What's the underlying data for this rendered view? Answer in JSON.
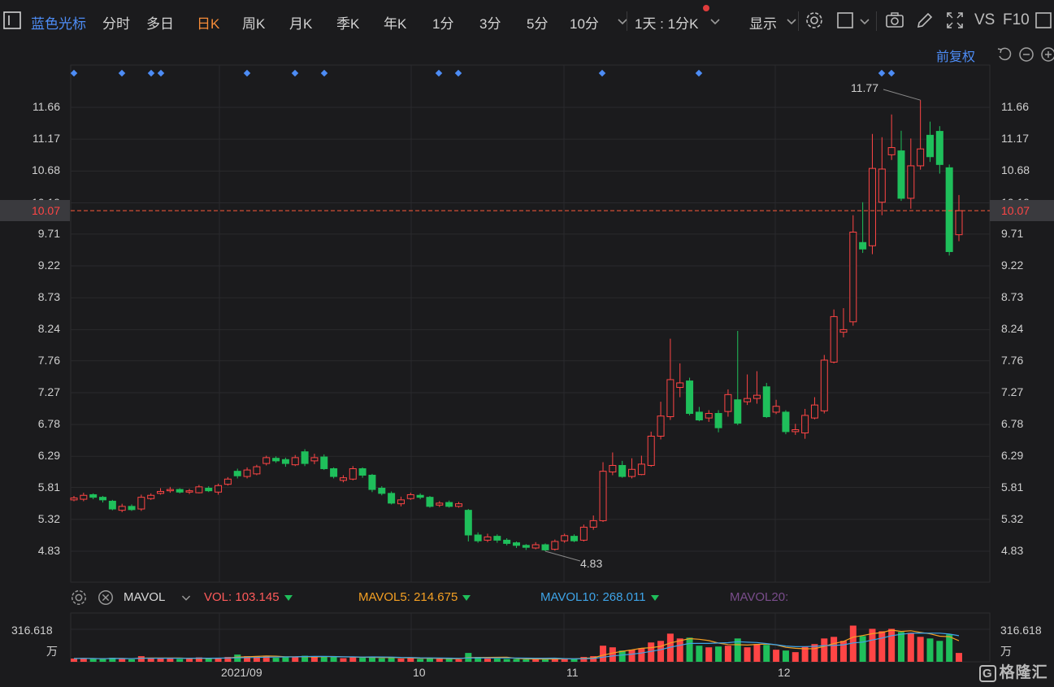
{
  "toolbar": {
    "stock_name": "蓝色光标",
    "tabs": [
      "分时",
      "多日",
      "日K",
      "周K",
      "月K",
      "季K",
      "年K",
      "1分",
      "3分",
      "5分",
      "10分"
    ],
    "active_tab": "日K",
    "period_select": "1天 : 1分K",
    "display_label": "显示",
    "vs_label": "VS",
    "f10_label": "F10"
  },
  "chart_header": {
    "adjust_label": "前复权"
  },
  "price_axis": {
    "ticks": [
      "11.66",
      "11.17",
      "10.68",
      "10.19",
      "9.71",
      "9.22",
      "8.73",
      "8.24",
      "7.76",
      "7.27",
      "6.78",
      "6.29",
      "5.81",
      "5.32",
      "4.83"
    ],
    "current_price": "10.07",
    "high_label": "11.77",
    "low_label": "4.83"
  },
  "volume_panel": {
    "indicator": "MAVOL",
    "vol_label": "VOL:",
    "vol_value": "103.145",
    "mavol5_label": "MAVOL5:",
    "mavol5_value": "214.675",
    "mavol10_label": "MAVOL10:",
    "mavol10_value": "268.011",
    "mavol20_label": "MAVOL20:",
    "axis_max": "316.618",
    "unit": "万"
  },
  "time_axis": {
    "labels": [
      "2021/09",
      "10",
      "11",
      "12"
    ]
  },
  "watermark": "格隆汇",
  "colors": {
    "up": "#ff4545",
    "down": "#1fbf5b",
    "ma5": "#f5a023",
    "ma10": "#3ea4e8",
    "brand": "#4d8cf5",
    "accent": "#f58b38"
  },
  "chart_data": {
    "type": "candlestick",
    "title": "蓝色光标 日K",
    "ylim": [
      4.55,
      12.0
    ],
    "series": [
      {
        "o": 5.62,
        "c": 5.65,
        "h": 5.68,
        "l": 5.6,
        "v": 8
      },
      {
        "o": 5.63,
        "c": 5.69,
        "h": 5.73,
        "l": 5.6,
        "v": 9
      },
      {
        "o": 5.7,
        "c": 5.66,
        "h": 5.72,
        "l": 5.63,
        "v": 7
      },
      {
        "o": 5.66,
        "c": 5.62,
        "h": 5.68,
        "l": 5.58,
        "v": 7
      },
      {
        "o": 5.6,
        "c": 5.48,
        "h": 5.62,
        "l": 5.46,
        "v": 10
      },
      {
        "o": 5.46,
        "c": 5.52,
        "h": 5.56,
        "l": 5.43,
        "v": 8
      },
      {
        "o": 5.52,
        "c": 5.47,
        "h": 5.55,
        "l": 5.45,
        "v": 6
      },
      {
        "o": 5.48,
        "c": 5.66,
        "h": 5.7,
        "l": 5.45,
        "v": 14
      },
      {
        "o": 5.64,
        "c": 5.69,
        "h": 5.72,
        "l": 5.62,
        "v": 9
      },
      {
        "o": 5.72,
        "c": 5.75,
        "h": 5.8,
        "l": 5.7,
        "v": 10
      },
      {
        "o": 5.76,
        "c": 5.78,
        "h": 5.82,
        "l": 5.73,
        "v": 8
      },
      {
        "o": 5.78,
        "c": 5.74,
        "h": 5.8,
        "l": 5.72,
        "v": 7
      },
      {
        "o": 5.74,
        "c": 5.76,
        "h": 5.79,
        "l": 5.71,
        "v": 7
      },
      {
        "o": 5.73,
        "c": 5.82,
        "h": 5.85,
        "l": 5.72,
        "v": 11
      },
      {
        "o": 5.8,
        "c": 5.76,
        "h": 5.83,
        "l": 5.74,
        "v": 8
      },
      {
        "o": 5.74,
        "c": 5.84,
        "h": 5.87,
        "l": 5.7,
        "v": 10
      },
      {
        "o": 5.86,
        "c": 5.94,
        "h": 5.97,
        "l": 5.84,
        "v": 12
      },
      {
        "o": 6.06,
        "c": 5.99,
        "h": 6.1,
        "l": 5.95,
        "v": 18
      },
      {
        "o": 5.98,
        "c": 6.08,
        "h": 6.12,
        "l": 5.95,
        "v": 14
      },
      {
        "o": 6.02,
        "c": 6.13,
        "h": 6.16,
        "l": 6.0,
        "v": 13
      },
      {
        "o": 6.18,
        "c": 6.27,
        "h": 6.3,
        "l": 6.15,
        "v": 15
      },
      {
        "o": 6.26,
        "c": 6.22,
        "h": 6.29,
        "l": 6.19,
        "v": 10
      },
      {
        "o": 6.24,
        "c": 6.18,
        "h": 6.27,
        "l": 6.13,
        "v": 11
      },
      {
        "o": 6.16,
        "c": 6.27,
        "h": 6.31,
        "l": 6.14,
        "v": 13
      },
      {
        "o": 6.36,
        "c": 6.18,
        "h": 6.4,
        "l": 6.14,
        "v": 15
      },
      {
        "o": 6.22,
        "c": 6.27,
        "h": 6.33,
        "l": 6.17,
        "v": 12
      },
      {
        "o": 6.28,
        "c": 6.1,
        "h": 6.32,
        "l": 6.08,
        "v": 14
      },
      {
        "o": 6.1,
        "c": 5.98,
        "h": 6.12,
        "l": 5.95,
        "v": 12
      },
      {
        "o": 5.92,
        "c": 5.96,
        "h": 6.0,
        "l": 5.89,
        "v": 9
      },
      {
        "o": 5.94,
        "c": 6.1,
        "h": 6.14,
        "l": 5.92,
        "v": 12
      },
      {
        "o": 6.1,
        "c": 6.0,
        "h": 6.12,
        "l": 5.96,
        "v": 10
      },
      {
        "o": 6.0,
        "c": 5.78,
        "h": 6.02,
        "l": 5.74,
        "v": 13
      },
      {
        "o": 5.8,
        "c": 5.72,
        "h": 5.83,
        "l": 5.69,
        "v": 9
      },
      {
        "o": 5.72,
        "c": 5.57,
        "h": 5.75,
        "l": 5.55,
        "v": 11
      },
      {
        "o": 5.56,
        "c": 5.62,
        "h": 5.67,
        "l": 5.52,
        "v": 8
      },
      {
        "o": 5.64,
        "c": 5.7,
        "h": 5.73,
        "l": 5.62,
        "v": 9
      },
      {
        "o": 5.69,
        "c": 5.66,
        "h": 5.72,
        "l": 5.63,
        "v": 7
      },
      {
        "o": 5.66,
        "c": 5.52,
        "h": 5.68,
        "l": 5.5,
        "v": 10
      },
      {
        "o": 5.54,
        "c": 5.57,
        "h": 5.6,
        "l": 5.51,
        "v": 7
      },
      {
        "o": 5.58,
        "c": 5.52,
        "h": 5.61,
        "l": 5.5,
        "v": 7
      },
      {
        "o": 5.52,
        "c": 5.56,
        "h": 5.59,
        "l": 5.5,
        "v": 6
      },
      {
        "o": 5.46,
        "c": 5.08,
        "h": 5.48,
        "l": 4.98,
        "v": 22
      },
      {
        "o": 5.08,
        "c": 4.99,
        "h": 5.12,
        "l": 4.96,
        "v": 12
      },
      {
        "o": 5.0,
        "c": 5.05,
        "h": 5.1,
        "l": 4.97,
        "v": 8
      },
      {
        "o": 5.06,
        "c": 5.0,
        "h": 5.09,
        "l": 4.96,
        "v": 8
      },
      {
        "o": 5.0,
        "c": 4.95,
        "h": 5.03,
        "l": 4.92,
        "v": 7
      },
      {
        "o": 4.96,
        "c": 4.92,
        "h": 4.98,
        "l": 4.88,
        "v": 7
      },
      {
        "o": 4.92,
        "c": 4.89,
        "h": 4.94,
        "l": 4.85,
        "v": 6
      },
      {
        "o": 4.88,
        "c": 4.93,
        "h": 4.97,
        "l": 4.86,
        "v": 6
      },
      {
        "o": 4.93,
        "c": 4.85,
        "h": 4.95,
        "l": 4.83,
        "v": 7
      },
      {
        "o": 4.86,
        "c": 4.98,
        "h": 5.01,
        "l": 4.84,
        "v": 8
      },
      {
        "o": 4.99,
        "c": 5.07,
        "h": 5.1,
        "l": 4.96,
        "v": 9
      },
      {
        "o": 5.06,
        "c": 4.99,
        "h": 5.09,
        "l": 4.97,
        "v": 7
      },
      {
        "o": 5.0,
        "c": 5.2,
        "h": 5.24,
        "l": 4.98,
        "v": 12
      },
      {
        "o": 5.2,
        "c": 5.3,
        "h": 5.38,
        "l": 5.16,
        "v": 14
      },
      {
        "o": 5.3,
        "c": 6.06,
        "h": 6.2,
        "l": 5.28,
        "v": 40
      },
      {
        "o": 6.05,
        "c": 6.15,
        "h": 6.35,
        "l": 6.0,
        "v": 36
      },
      {
        "o": 6.15,
        "c": 5.98,
        "h": 6.22,
        "l": 5.96,
        "v": 28
      },
      {
        "o": 5.98,
        "c": 6.09,
        "h": 6.26,
        "l": 5.95,
        "v": 30
      },
      {
        "o": 6.01,
        "c": 6.17,
        "h": 6.3,
        "l": 6.0,
        "v": 34
      },
      {
        "o": 6.15,
        "c": 6.6,
        "h": 6.67,
        "l": 6.13,
        "v": 48
      },
      {
        "o": 6.6,
        "c": 6.91,
        "h": 7.13,
        "l": 6.55,
        "v": 52
      },
      {
        "o": 6.9,
        "c": 7.47,
        "h": 8.1,
        "l": 6.85,
        "v": 70
      },
      {
        "o": 7.35,
        "c": 7.42,
        "h": 7.72,
        "l": 7.2,
        "v": 58
      },
      {
        "o": 7.45,
        "c": 6.95,
        "h": 7.5,
        "l": 6.92,
        "v": 60
      },
      {
        "o": 6.97,
        "c": 6.85,
        "h": 7.05,
        "l": 6.83,
        "v": 40
      },
      {
        "o": 6.88,
        "c": 6.95,
        "h": 7.0,
        "l": 6.82,
        "v": 36
      },
      {
        "o": 6.95,
        "c": 6.73,
        "h": 7.0,
        "l": 6.66,
        "v": 38
      },
      {
        "o": 6.98,
        "c": 7.24,
        "h": 7.32,
        "l": 6.9,
        "v": 40
      },
      {
        "o": 7.16,
        "c": 6.8,
        "h": 8.22,
        "l": 6.77,
        "v": 58
      },
      {
        "o": 7.13,
        "c": 7.18,
        "h": 7.55,
        "l": 7.08,
        "v": 36
      },
      {
        "o": 7.18,
        "c": 7.23,
        "h": 7.6,
        "l": 7.1,
        "v": 44
      },
      {
        "o": 7.36,
        "c": 6.9,
        "h": 7.42,
        "l": 6.88,
        "v": 42
      },
      {
        "o": 6.97,
        "c": 7.06,
        "h": 7.16,
        "l": 6.94,
        "v": 30
      },
      {
        "o": 6.97,
        "c": 6.67,
        "h": 7.0,
        "l": 6.63,
        "v": 28
      },
      {
        "o": 6.67,
        "c": 6.7,
        "h": 6.79,
        "l": 6.62,
        "v": 24
      },
      {
        "o": 6.65,
        "c": 6.92,
        "h": 7.02,
        "l": 6.56,
        "v": 38
      },
      {
        "o": 6.88,
        "c": 7.08,
        "h": 7.2,
        "l": 6.86,
        "v": 44
      },
      {
        "o": 6.99,
        "c": 7.77,
        "h": 7.85,
        "l": 6.95,
        "v": 58
      },
      {
        "o": 7.74,
        "c": 8.44,
        "h": 8.55,
        "l": 7.72,
        "v": 62
      },
      {
        "o": 8.2,
        "c": 8.24,
        "h": 8.57,
        "l": 8.12,
        "v": 52
      },
      {
        "o": 8.36,
        "c": 9.74,
        "h": 10.0,
        "l": 8.3,
        "v": 90
      },
      {
        "o": 9.58,
        "c": 9.48,
        "h": 10.2,
        "l": 9.42,
        "v": 64
      },
      {
        "o": 9.53,
        "c": 10.72,
        "h": 11.25,
        "l": 9.4,
        "v": 82
      },
      {
        "o": 10.2,
        "c": 10.71,
        "h": 11.2,
        "l": 10.0,
        "v": 76
      },
      {
        "o": 10.93,
        "c": 11.04,
        "h": 11.55,
        "l": 10.85,
        "v": 82
      },
      {
        "o": 10.99,
        "c": 10.26,
        "h": 11.3,
        "l": 10.22,
        "v": 74
      },
      {
        "o": 10.26,
        "c": 10.76,
        "h": 11.18,
        "l": 10.1,
        "v": 72
      },
      {
        "o": 10.76,
        "c": 11.02,
        "h": 11.77,
        "l": 10.7,
        "v": 62
      },
      {
        "o": 11.23,
        "c": 10.9,
        "h": 11.44,
        "l": 10.82,
        "v": 58
      },
      {
        "o": 11.29,
        "c": 10.78,
        "h": 11.37,
        "l": 10.64,
        "v": 52
      },
      {
        "o": 10.73,
        "c": 9.44,
        "h": 10.78,
        "l": 9.38,
        "v": 68
      },
      {
        "o": 9.7,
        "c": 10.07,
        "h": 10.31,
        "l": 9.6,
        "v": 22
      }
    ]
  }
}
